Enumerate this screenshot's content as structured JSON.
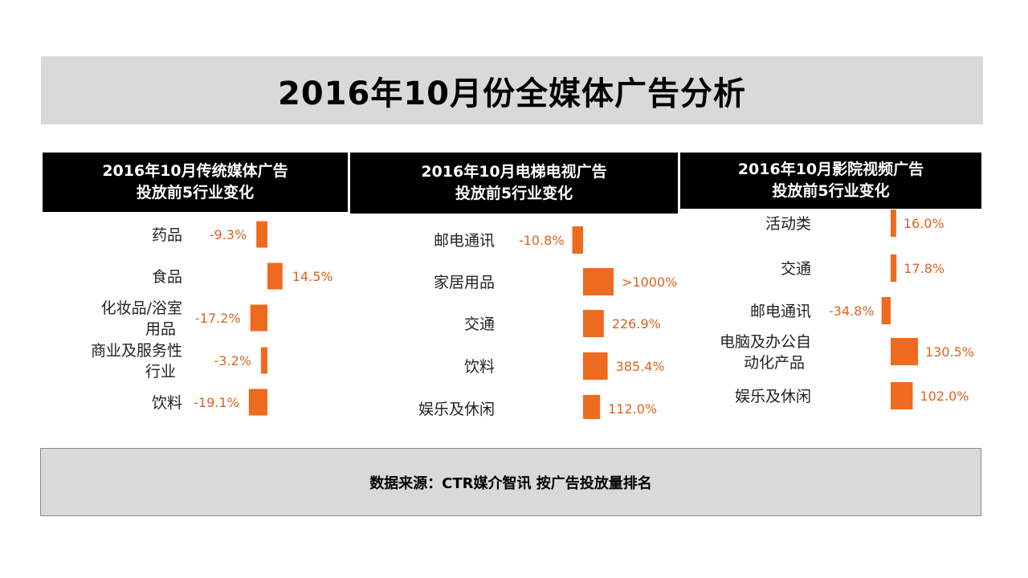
{
  "title": "2016年10月份全媒体广告分析",
  "colors": {
    "bar": "#ee6a1f",
    "header_bg": "#000000",
    "banner_bg": "#d9d9d9",
    "value_text": "#d9641e"
  },
  "source_note": "数据来源：CTR媒介智讯 按广告投放量排名",
  "chart_data": [
    {
      "type": "bar",
      "orientation": "horizontal",
      "title_line1": "2016年10月传统媒体广告",
      "title_line2": "投放前5行业变化",
      "categories": [
        "药品",
        "食品",
        "化妆品/浴室用品",
        "商业及服务性行业",
        "饮料"
      ],
      "values": [
        -9.3,
        14.5,
        -17.2,
        -3.2,
        -19.1
      ],
      "value_labels": [
        "-9.3%",
        "14.5%",
        "-17.2%",
        "-3.2%",
        "-19.1%"
      ]
    },
    {
      "type": "bar",
      "orientation": "horizontal",
      "title_line1": "2016年10月电梯电视广告",
      "title_line2": "投放前5行业变化",
      "categories": [
        "邮电通讯",
        "家居用品",
        "交通",
        "饮料",
        "娱乐及休闲"
      ],
      "values": [
        -10.8,
        1000,
        226.9,
        385.4,
        112.0
      ],
      "value_labels": [
        "-10.8%",
        ">1000%",
        "226.9%",
        "385.4%",
        "112.0%"
      ]
    },
    {
      "type": "bar",
      "orientation": "horizontal",
      "title_line1": "2016年10月影院视频广告",
      "title_line2": "投放前5行业变化",
      "categories": [
        "活动类",
        "交通",
        "邮电通讯",
        "电脑及办公自动化产品",
        "娱乐及休闲"
      ],
      "values": [
        16.0,
        17.8,
        -34.8,
        130.5,
        102.0
      ],
      "value_labels": [
        "16.0%",
        "17.8%",
        "-34.8%",
        "130.5%",
        "102.0%"
      ]
    }
  ]
}
